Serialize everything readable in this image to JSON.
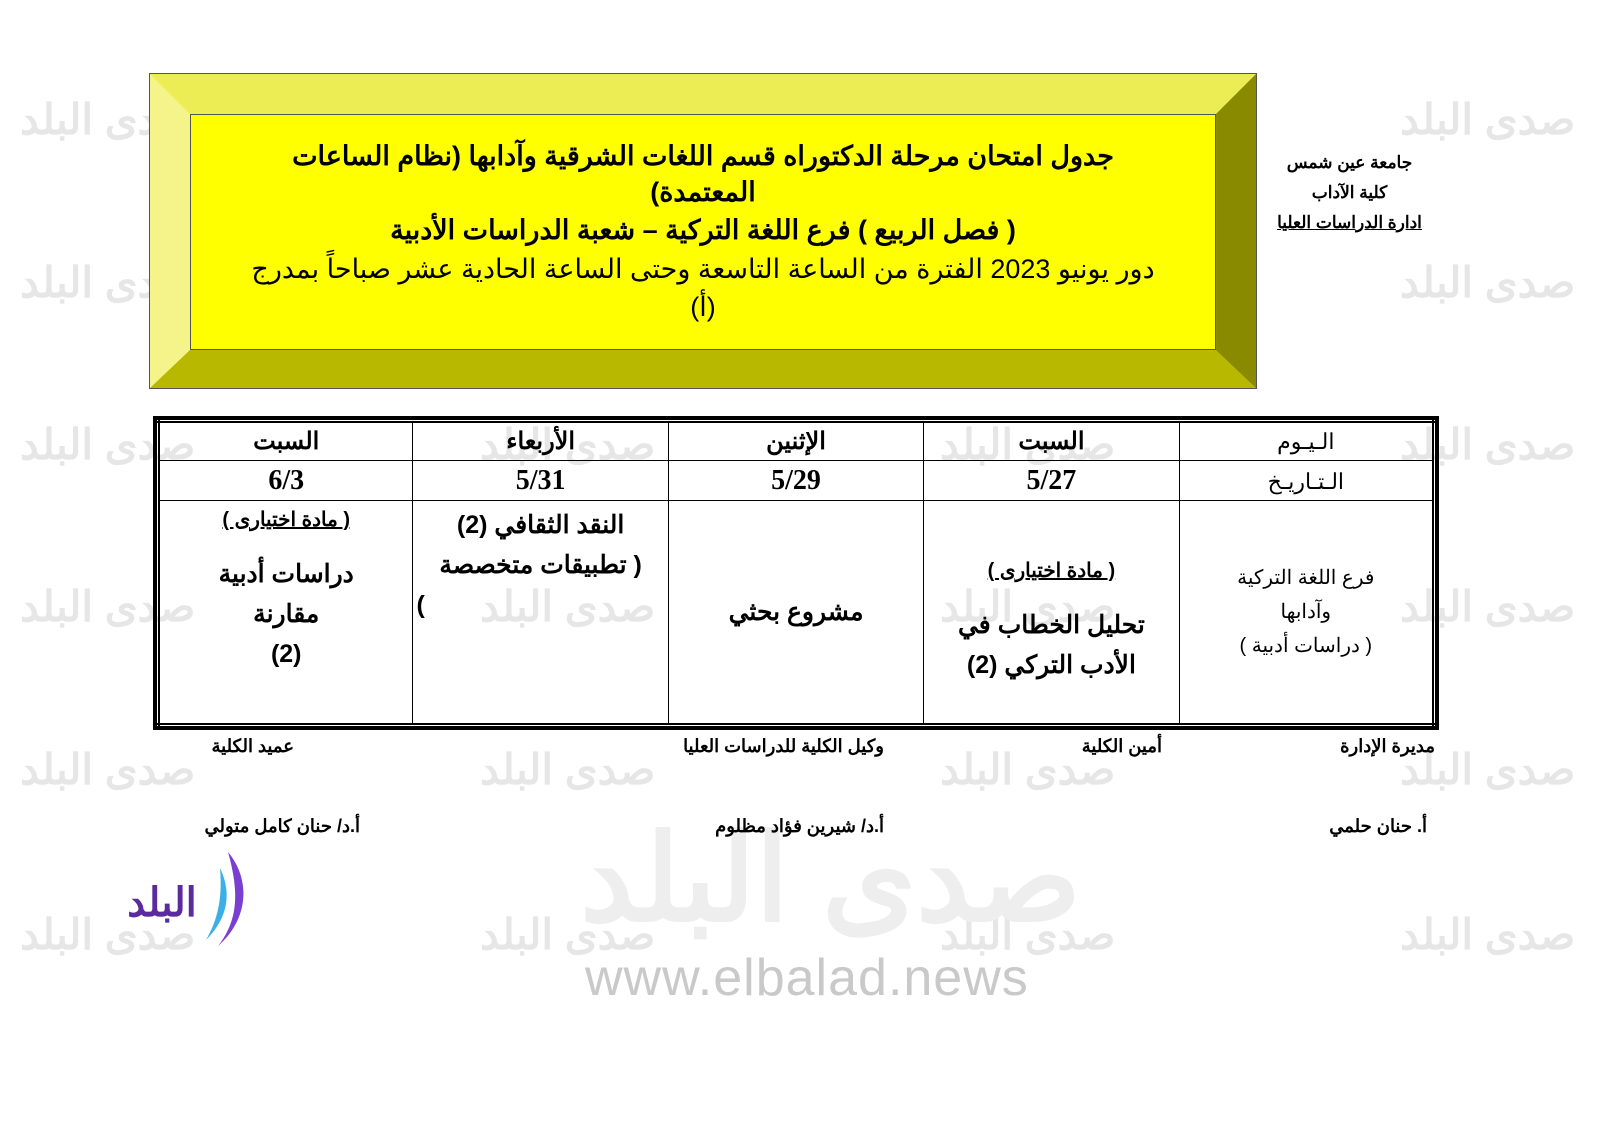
{
  "watermark": {
    "text": "صدى البلد",
    "url": "www.elbalad.news"
  },
  "header": {
    "university": "جامعة عين شمس",
    "faculty": "كلية الآداب",
    "department": "ادارة الدراسات العليا"
  },
  "title": {
    "line1": "جدول امتحان مرحلة الدكتوراه قسم اللغات الشرقية وآدابها (نظام الساعات المعتمدة)",
    "line2": "( فصل  الربيع ) فرع اللغة التركية – شعبة الدراسات الأدبية",
    "line3": "دور يونيو 2023  الفترة من الساعة التاسعة وحتى الساعة الحادية عشر صباحاً بمدرج (أ)"
  },
  "table": {
    "day_label": "الـيـوم",
    "date_label": "الـتـاريـخ",
    "branch": [
      "فرع اللغة التركية",
      "وآدابها",
      "( دراسات أدبية )"
    ],
    "columns": [
      {
        "day": "السبت",
        "date": "5/27",
        "optional": "( مادة اختيارى )",
        "subject": [
          "تحليل الخطاب في",
          "الأدب التركي (2)"
        ]
      },
      {
        "day": "الإثنين",
        "date": "5/29",
        "optional": "",
        "subject": [
          "مشروع بحثي"
        ]
      },
      {
        "day": "الأربعاء",
        "date": "5/31",
        "optional": "",
        "subject": [
          "النقد الثقافي (2)",
          "( تطبيقات متخصصة",
          ")"
        ]
      },
      {
        "day": "السبت",
        "date": "6/3",
        "optional": "( مادة اختيارى )",
        "subject": [
          "دراسات أدبية",
          "مقارنة",
          "(2)"
        ]
      }
    ]
  },
  "signatures": [
    {
      "title": "مديرة الإدارة",
      "name": "أ. حنان حلمي"
    },
    {
      "title": "أمين الكلية",
      "name": ""
    },
    {
      "title": "وكيل الكلية للدراسات العليا",
      "name": "أ.د/ شيرين فؤاد مظلوم"
    },
    {
      "title": "عميد الكلية",
      "name": "أ.د/ حنان كامل متولي"
    }
  ],
  "logo": {
    "text": "صدى البلد",
    "color": "#5b2a9e"
  }
}
